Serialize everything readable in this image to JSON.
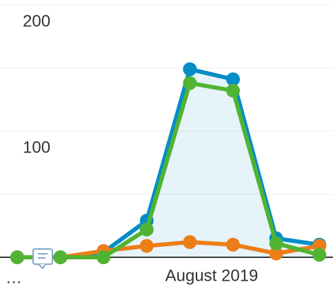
{
  "chart_data": {
    "type": "line",
    "x_label": "August 2019",
    "ellipsis": "…",
    "categories": [
      null,
      null,
      null,
      null,
      null,
      null,
      null,
      null
    ],
    "series": [
      {
        "name": null,
        "color": "#058dc7",
        "values": [
          0,
          0,
          4,
          29,
          149,
          141,
          15,
          10
        ],
        "area": true
      },
      {
        "name": null,
        "color": "#ed7e17",
        "values": [
          0,
          0,
          5,
          9,
          12,
          10,
          3,
          9
        ]
      },
      {
        "name": null,
        "color": "#50b432",
        "values": [
          0,
          0,
          0,
          22,
          138,
          132,
          11,
          2
        ]
      }
    ],
    "ylim": [
      0,
      200
    ],
    "yticks": [
      100,
      200
    ],
    "minor_yticks": [
      50,
      150
    ],
    "grid": true
  }
}
